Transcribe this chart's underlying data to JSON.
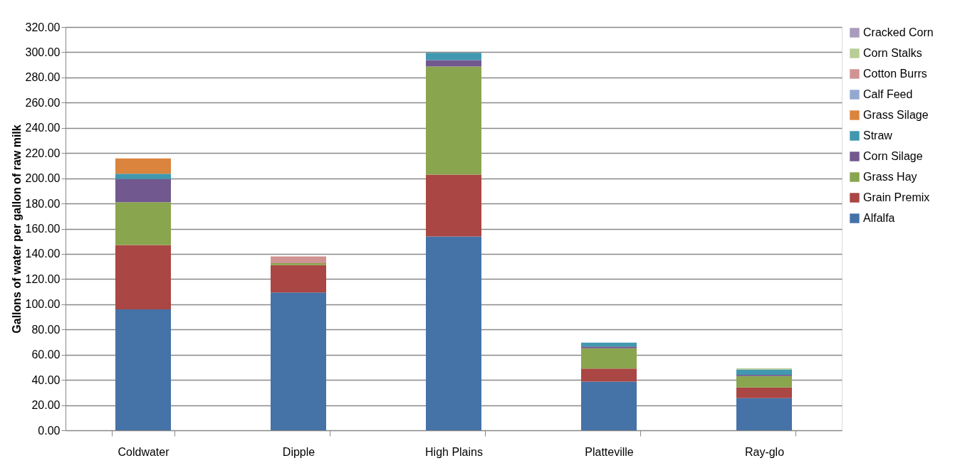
{
  "chart_data": {
    "type": "bar",
    "stacked": true,
    "ylabel": "Gallons of water per gallon of raw milk",
    "categories": [
      "Coldwater",
      "Dipple",
      "High Plains",
      "Platteville",
      "Ray-glo"
    ],
    "series": [
      {
        "name": "Alfalfa",
        "color": "#4572a7",
        "values": [
          96,
          109.3,
          153.8,
          38.6,
          25.5
        ]
      },
      {
        "name": "Grain Premix",
        "color": "#aa4643",
        "values": [
          51,
          21.8,
          49.1,
          10.4,
          8.5
        ]
      },
      {
        "name": "Grass Hay",
        "color": "#89a54e",
        "values": [
          34,
          1.5,
          85.8,
          16.1,
          9.1
        ]
      },
      {
        "name": "Corn Silage",
        "color": "#71588f",
        "values": [
          18.3,
          null,
          5,
          1.3,
          0.9
        ]
      },
      {
        "name": "Straw",
        "color": "#4198af",
        "values": [
          4.3,
          null,
          5.8,
          3.1,
          4.3
        ]
      },
      {
        "name": "Grass Silage",
        "color": "#db843d",
        "values": [
          12.1,
          null,
          null,
          null,
          null
        ]
      },
      {
        "name": "Calf Feed",
        "color": "#93a9cf",
        "values": [
          null,
          null,
          null,
          null,
          null
        ]
      },
      {
        "name": "Cotton Burrs",
        "color": "#d19392",
        "values": [
          null,
          5.4,
          null,
          null,
          null
        ]
      },
      {
        "name": "Corn Stalks",
        "color": "#b9cd96",
        "values": [
          null,
          null,
          null,
          null,
          0.9
        ]
      },
      {
        "name": "Cracked Corn",
        "color": "#a99bbd",
        "values": [
          null,
          null,
          null,
          null,
          null
        ]
      }
    ],
    "ylim": [
      0,
      320
    ],
    "yticks": [
      {
        "value": 0,
        "label": "0.00"
      },
      {
        "value": 20,
        "label": "20.00"
      },
      {
        "value": 40,
        "label": "40.00"
      },
      {
        "value": 60,
        "label": "60.00"
      },
      {
        "value": 80,
        "label": "80.00"
      },
      {
        "value": 100,
        "label": "100.00"
      },
      {
        "value": 120,
        "label": "120.00"
      },
      {
        "value": 140,
        "label": "140.00"
      },
      {
        "value": 160,
        "label": "160.00"
      },
      {
        "value": 180,
        "label": "180.00"
      },
      {
        "value": 200,
        "label": "200.00"
      },
      {
        "value": 220,
        "label": "220.00"
      },
      {
        "value": 240,
        "label": "240.00"
      },
      {
        "value": 260,
        "label": "260.00"
      },
      {
        "value": 280,
        "label": "280.00"
      },
      {
        "value": 300,
        "label": "300.00"
      },
      {
        "value": 320,
        "label": "320.00"
      }
    ],
    "grid": "y",
    "legend": "right"
  }
}
